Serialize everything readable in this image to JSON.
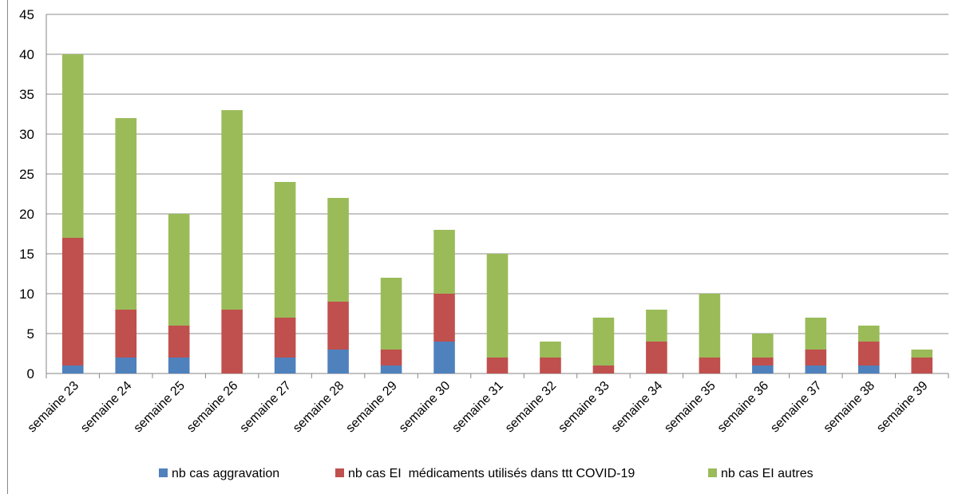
{
  "chart_data": {
    "type": "bar",
    "stacked": true,
    "title": "",
    "xlabel": "",
    "ylabel": "",
    "ylim": [
      0,
      45
    ],
    "yticks": [
      0,
      5,
      10,
      15,
      20,
      25,
      30,
      35,
      40,
      45
    ],
    "grid": true,
    "legend_position": "bottom",
    "categories": [
      "semaine 23",
      "semaine 24",
      "semaine 25",
      "semaine 26",
      "semaine 27",
      "semaine 28",
      "semaine 29",
      "semaine 30",
      "semaine 31",
      "semaine 32",
      "semaine 33",
      "semaine 34",
      "semaine 35",
      "semaine 36",
      "semaine 37",
      "semaine 38",
      "semaine 39"
    ],
    "series": [
      {
        "name": "nb cas aggravation",
        "color": "#4F81BD",
        "values": [
          1,
          2,
          2,
          0,
          2,
          3,
          1,
          4,
          0,
          0,
          0,
          0,
          0,
          1,
          1,
          1,
          0
        ]
      },
      {
        "name": "nb cas EI  médicaments utilisés dans ttt COVID-19",
        "color": "#C0504D",
        "values": [
          16,
          6,
          4,
          8,
          5,
          6,
          2,
          6,
          2,
          2,
          1,
          4,
          2,
          1,
          2,
          3,
          2
        ]
      },
      {
        "name": "nb cas EI autres",
        "color": "#9BBB59",
        "values": [
          23,
          24,
          14,
          25,
          17,
          13,
          9,
          8,
          13,
          2,
          6,
          4,
          8,
          3,
          4,
          2,
          1
        ]
      }
    ]
  }
}
